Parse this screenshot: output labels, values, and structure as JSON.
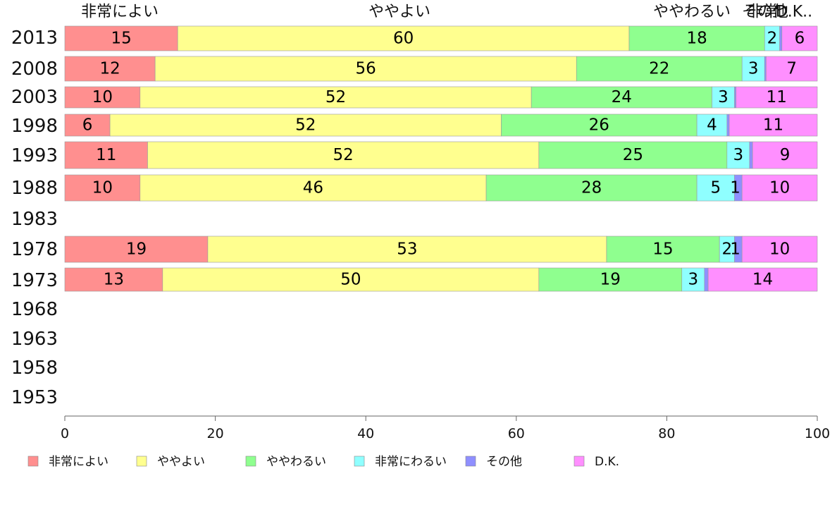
{
  "chart_data": {
    "type": "bar",
    "orientation": "horizontal",
    "stacked": true,
    "categories": [
      "2013",
      "2008",
      "2003",
      "1998",
      "1993",
      "1988",
      "1983",
      "1978",
      "1973",
      "1968",
      "1963",
      "1958",
      "1953"
    ],
    "series": [
      {
        "name": "非常によい",
        "color": "#ff8f8f",
        "values": [
          15,
          12,
          10,
          6,
          11,
          10,
          null,
          19,
          13,
          null,
          null,
          null,
          null
        ]
      },
      {
        "name": "ややよい",
        "color": "#ffff8f",
        "values": [
          60,
          56,
          52,
          52,
          52,
          46,
          null,
          53,
          50,
          null,
          null,
          null,
          null
        ]
      },
      {
        "name": "ややわるい",
        "color": "#8fff8f",
        "values": [
          18,
          22,
          24,
          26,
          25,
          28,
          null,
          15,
          19,
          null,
          null,
          null,
          null
        ]
      },
      {
        "name": "非常にわるい",
        "color": "#8fffff",
        "values": [
          2,
          3,
          3,
          4,
          3,
          5,
          null,
          2,
          3,
          null,
          null,
          null,
          null
        ]
      },
      {
        "name": "その他",
        "color": "#8f8fff",
        "values": [
          0.3,
          0.2,
          0.2,
          0.3,
          0.4,
          1,
          null,
          1,
          0.5,
          null,
          null,
          null,
          null
        ]
      },
      {
        "name": "D.K.",
        "color": "#ff8fff",
        "values": [
          6,
          7,
          11,
          11,
          9,
          10,
          null,
          10,
          14,
          null,
          null,
          null,
          null
        ]
      }
    ],
    "top_labels": [
      "非常によい",
      "ややよい",
      "ややわるい",
      "非常",
      "その他",
      "D.K.."
    ],
    "xlim": [
      0,
      100
    ],
    "xticks": [
      "0",
      "20",
      "40",
      "60",
      "80",
      "100"
    ],
    "grid": false,
    "legend_position": "bottom"
  }
}
